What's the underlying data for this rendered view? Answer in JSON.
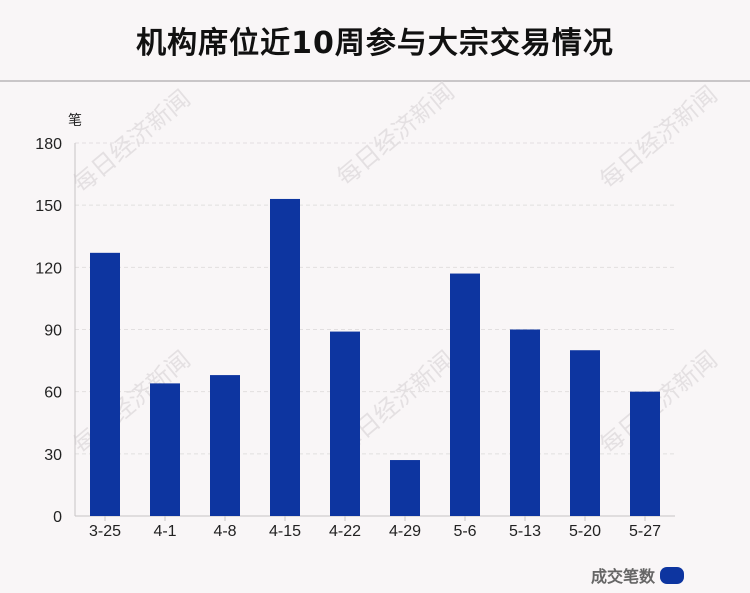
{
  "title": "机构席位近10周参与大宗交易情况",
  "watermark": "每日经济新闻",
  "colors": {
    "bar": "#0d35a0",
    "axis": "#c8c4c6",
    "grid": "#e2dfe0",
    "text": "#222222"
  },
  "chart_data": {
    "type": "bar",
    "ylabel": "笔",
    "ylim": [
      0,
      180
    ],
    "yticks": [
      0,
      30,
      60,
      90,
      120,
      150,
      180
    ],
    "grid": true,
    "legend_position": "bottom-right",
    "categories": [
      "3-25",
      "4-1",
      "4-8",
      "4-15",
      "4-22",
      "4-29",
      "5-6",
      "5-13",
      "5-20",
      "5-27"
    ],
    "series": [
      {
        "name": "成交笔数",
        "values": [
          127,
          64,
          68,
          153,
          89,
          27,
          117,
          90,
          80,
          60
        ]
      }
    ]
  }
}
